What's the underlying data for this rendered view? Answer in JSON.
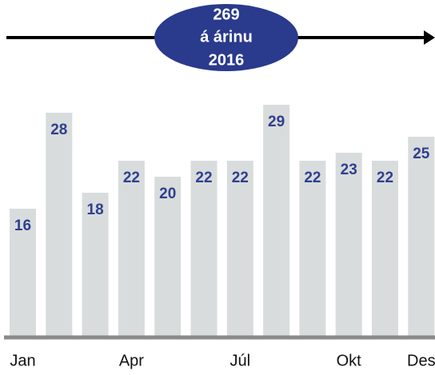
{
  "chart_data": {
    "type": "bar",
    "categories": [
      "Jan",
      null,
      null,
      "Apr",
      null,
      null,
      "Júl",
      null,
      null,
      "Okt",
      null,
      "Des"
    ],
    "values": [
      16,
      28,
      18,
      22,
      20,
      22,
      22,
      29,
      22,
      23,
      22,
      25
    ],
    "color": "#d8dcdc",
    "annotation": [
      "269",
      "á árinu",
      "2016"
    ]
  }
}
